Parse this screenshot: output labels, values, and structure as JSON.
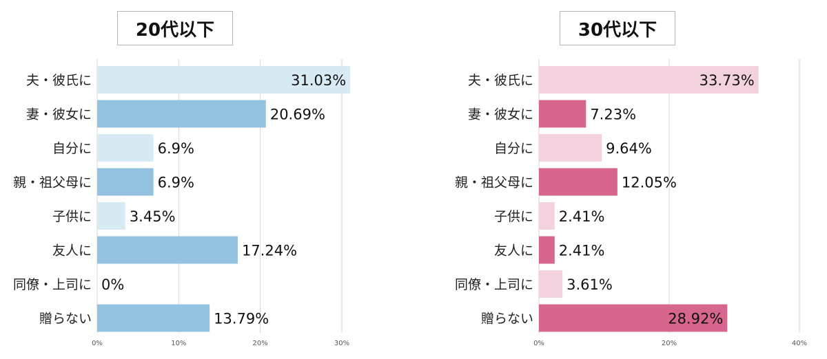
{
  "chart_data": [
    {
      "type": "bar",
      "orientation": "horizontal",
      "title": "20代以下",
      "categories": [
        "夫・彼氏に",
        "妻・彼女に",
        "自分に",
        "親・祖父母に",
        "子供に",
        "友人に",
        "同僚・上司に",
        "贈らない"
      ],
      "values": [
        31.03,
        20.69,
        6.9,
        6.9,
        3.45,
        17.24,
        0,
        13.79
      ],
      "labels": [
        "31.03%",
        "20.69%",
        "6.9%",
        "6.9%",
        "3.45%",
        "17.24%",
        "0%",
        "13.79%"
      ],
      "xticks": [
        "0%",
        "10%",
        "20%",
        "30%"
      ],
      "xlim": [
        0,
        31
      ],
      "grid": true,
      "colors": {
        "light": "#d8eaf4",
        "dark": "#93c3e0",
        "grid": "#d6d6d6"
      }
    },
    {
      "type": "bar",
      "orientation": "horizontal",
      "title": "30代以下",
      "categories": [
        "夫・彼氏に",
        "妻・彼女に",
        "自分に",
        "親・祖父母に",
        "子供に",
        "友人に",
        "同僚・上司に",
        "贈らない"
      ],
      "values": [
        33.73,
        7.23,
        9.64,
        12.05,
        2.41,
        2.41,
        3.61,
        28.92
      ],
      "labels": [
        "33.73%",
        "7.23%",
        "9.64%",
        "12.05%",
        "2.41%",
        "2.41%",
        "3.61%",
        "28.92%"
      ],
      "xticks": [
        "0%",
        "20%",
        "40%"
      ],
      "xlim": [
        0,
        40
      ],
      "grid": true,
      "colors": {
        "light": "#f2d2df",
        "dark": "#d6668e",
        "grid": "#d6d6d6"
      }
    }
  ]
}
